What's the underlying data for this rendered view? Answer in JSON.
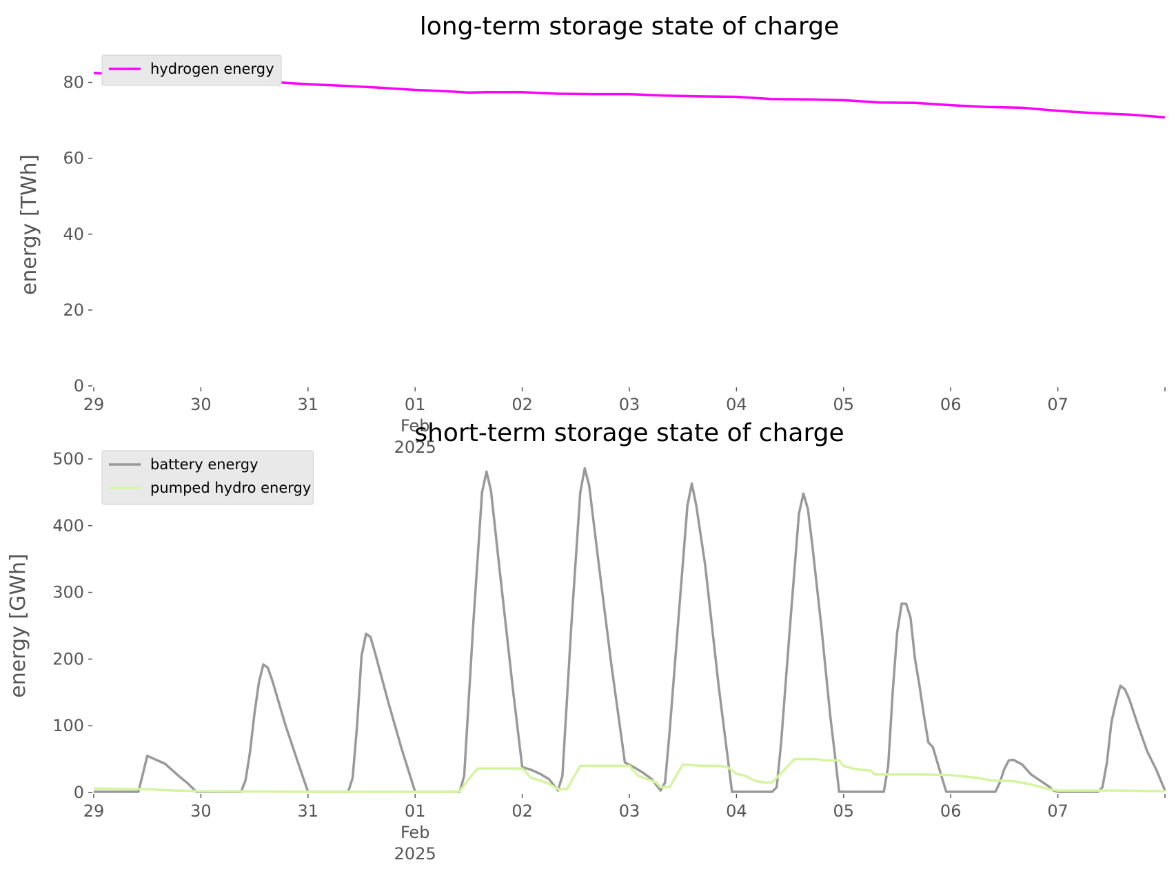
{
  "colors": {
    "hydrogen": "#ff00ff",
    "battery": "#999999",
    "pumped_hydro": "#d4f5a0",
    "axis_text": "#555555",
    "legend_bg": "#e9e9e9"
  },
  "chart_data": [
    {
      "type": "line",
      "title": "long-term storage state of charge",
      "xlabel": "",
      "ylabel": "energy [TWh]",
      "xlim": [
        "2025-01-29 00:00",
        "2025-02-08 00:00"
      ],
      "ylim": [
        0,
        85
      ],
      "yticks": [
        0,
        20,
        40,
        60,
        80
      ],
      "xticks": [
        {
          "label": "29",
          "sub": ""
        },
        {
          "label": "30",
          "sub": ""
        },
        {
          "label": "31",
          "sub": ""
        },
        {
          "label": "01",
          "sub": "Feb",
          "sub2": "2025"
        },
        {
          "label": "02",
          "sub": ""
        },
        {
          "label": "03",
          "sub": ""
        },
        {
          "label": "04",
          "sub": ""
        },
        {
          "label": "05",
          "sub": ""
        },
        {
          "label": "06",
          "sub": ""
        },
        {
          "label": "07",
          "sub": ""
        }
      ],
      "grid": false,
      "legend": "top-left",
      "series": [
        {
          "name": "hydrogen energy",
          "color": "#ff00ff",
          "points": [
            [
              "2025-01-29 00:00",
              82.5
            ],
            [
              "2025-01-29 12:00",
              81.6
            ],
            [
              "2025-01-30 00:00",
              81.0
            ],
            [
              "2025-01-30 12:00",
              80.4
            ],
            [
              "2025-01-31 00:00",
              79.5
            ],
            [
              "2025-01-31 08:00",
              79.1
            ],
            [
              "2025-01-31 16:00",
              78.6
            ],
            [
              "2025-02-01 00:00",
              78.0
            ],
            [
              "2025-02-01 08:00",
              77.6
            ],
            [
              "2025-02-01 12:00",
              77.3
            ],
            [
              "2025-02-01 16:00",
              77.4
            ],
            [
              "2025-02-02 00:00",
              77.4
            ],
            [
              "2025-02-02 08:00",
              77.0
            ],
            [
              "2025-02-02 16:00",
              76.9
            ],
            [
              "2025-02-03 00:00",
              76.9
            ],
            [
              "2025-02-03 08:00",
              76.5
            ],
            [
              "2025-02-03 16:00",
              76.3
            ],
            [
              "2025-02-04 00:00",
              76.2
            ],
            [
              "2025-02-04 08:00",
              75.6
            ],
            [
              "2025-02-04 16:00",
              75.5
            ],
            [
              "2025-02-05 00:00",
              75.3
            ],
            [
              "2025-02-05 08:00",
              74.7
            ],
            [
              "2025-02-05 16:00",
              74.6
            ],
            [
              "2025-02-06 00:00",
              74.0
            ],
            [
              "2025-02-06 08:00",
              73.5
            ],
            [
              "2025-02-06 16:00",
              73.3
            ],
            [
              "2025-02-07 00:00",
              72.5
            ],
            [
              "2025-02-07 08:00",
              71.9
            ],
            [
              "2025-02-07 16:00",
              71.5
            ],
            [
              "2025-02-08 00:00",
              70.8
            ]
          ]
        }
      ]
    },
    {
      "type": "line",
      "title": "short-term storage state of charge",
      "xlabel": "",
      "ylabel": "energy [GWh]",
      "xlim": [
        "2025-01-29 00:00",
        "2025-02-08 00:00"
      ],
      "ylim": [
        0,
        500
      ],
      "yticks": [
        0,
        100,
        200,
        300,
        400,
        500
      ],
      "xticks": [
        {
          "label": "29",
          "sub": ""
        },
        {
          "label": "30",
          "sub": ""
        },
        {
          "label": "31",
          "sub": ""
        },
        {
          "label": "01",
          "sub": "Feb",
          "sub2": "2025"
        },
        {
          "label": "02",
          "sub": ""
        },
        {
          "label": "03",
          "sub": ""
        },
        {
          "label": "04",
          "sub": ""
        },
        {
          "label": "05",
          "sub": ""
        },
        {
          "label": "06",
          "sub": ""
        },
        {
          "label": "07",
          "sub": ""
        }
      ],
      "grid": false,
      "legend": "top-left",
      "series": [
        {
          "name": "battery energy",
          "color": "#999999",
          "points": [
            [
              "2025-01-29 00:00",
              1
            ],
            [
              "2025-01-29 10:00",
              1
            ],
            [
              "2025-01-29 12:00",
              55
            ],
            [
              "2025-01-29 16:00",
              43
            ],
            [
              "2025-01-29 19:00",
              25
            ],
            [
              "2025-01-29 21:00",
              14
            ],
            [
              "2025-01-29 23:00",
              1
            ],
            [
              "2025-01-30 00:00",
              1
            ],
            [
              "2025-01-30 09:00",
              1
            ],
            [
              "2025-01-30 10:00",
              18
            ],
            [
              "2025-01-30 11:00",
              60
            ],
            [
              "2025-01-30 12:00",
              118
            ],
            [
              "2025-01-30 13:00",
              165
            ],
            [
              "2025-01-30 14:00",
              192
            ],
            [
              "2025-01-30 15:00",
              187
            ],
            [
              "2025-01-30 16:00",
              168
            ],
            [
              "2025-01-30 19:00",
              100
            ],
            [
              "2025-01-30 22:00",
              40
            ],
            [
              "2025-01-31 00:00",
              1
            ],
            [
              "2025-01-31 09:00",
              1
            ],
            [
              "2025-01-31 10:00",
              22
            ],
            [
              "2025-01-31 11:00",
              100
            ],
            [
              "2025-01-31 12:00",
              205
            ],
            [
              "2025-01-31 13:00",
              238
            ],
            [
              "2025-01-31 14:00",
              233
            ],
            [
              "2025-01-31 15:00",
              210
            ],
            [
              "2025-01-31 18:00",
              135
            ],
            [
              "2025-01-31 21:00",
              65
            ],
            [
              "2025-02-01 00:00",
              1
            ],
            [
              "2025-02-01 10:00",
              1
            ],
            [
              "2025-02-01 11:00",
              25
            ],
            [
              "2025-02-01 13:00",
              250
            ],
            [
              "2025-02-01 15:00",
              450
            ],
            [
              "2025-02-01 16:00",
              481
            ],
            [
              "2025-02-01 17:00",
              452
            ],
            [
              "2025-02-01 19:00",
              330
            ],
            [
              "2025-02-01 22:00",
              150
            ],
            [
              "2025-02-02 00:00",
              38
            ],
            [
              "2025-02-02 02:00",
              34
            ],
            [
              "2025-02-02 04:00",
              28
            ],
            [
              "2025-02-02 06:00",
              20
            ],
            [
              "2025-02-02 08:00",
              3
            ],
            [
              "2025-02-02 09:00",
              25
            ],
            [
              "2025-02-02 11:00",
              250
            ],
            [
              "2025-02-02 13:00",
              450
            ],
            [
              "2025-02-02 14:00",
              486
            ],
            [
              "2025-02-02 15:00",
              460
            ],
            [
              "2025-02-02 17:00",
              350
            ],
            [
              "2025-02-02 20:00",
              190
            ],
            [
              "2025-02-02 23:00",
              45
            ],
            [
              "2025-02-03 01:00",
              38
            ],
            [
              "2025-02-03 03:00",
              30
            ],
            [
              "2025-02-03 05:00",
              20
            ],
            [
              "2025-02-03 07:00",
              3
            ],
            [
              "2025-02-03 08:00",
              15
            ],
            [
              "2025-02-03 09:00",
              90
            ],
            [
              "2025-02-03 11:00",
              260
            ],
            [
              "2025-02-03 13:00",
              430
            ],
            [
              "2025-02-03 14:00",
              463
            ],
            [
              "2025-02-03 15:00",
              430
            ],
            [
              "2025-02-03 17:00",
              340
            ],
            [
              "2025-02-03 20:00",
              160
            ],
            [
              "2025-02-03 23:00",
              1
            ],
            [
              "2025-02-04 08:00",
              1
            ],
            [
              "2025-02-04 09:00",
              8
            ],
            [
              "2025-02-04 10:00",
              75
            ],
            [
              "2025-02-04 12:00",
              250
            ],
            [
              "2025-02-04 14:00",
              418
            ],
            [
              "2025-02-04 15:00",
              448
            ],
            [
              "2025-02-04 16:00",
              425
            ],
            [
              "2025-02-04 17:00",
              370
            ],
            [
              "2025-02-04 19:00",
              250
            ],
            [
              "2025-02-04 21:00",
              115
            ],
            [
              "2025-02-04 22:00",
              60
            ],
            [
              "2025-02-04 23:00",
              1
            ],
            [
              "2025-02-05 09:00",
              1
            ],
            [
              "2025-02-05 10:00",
              40
            ],
            [
              "2025-02-05 11:00",
              150
            ],
            [
              "2025-02-05 12:00",
              240
            ],
            [
              "2025-02-05 13:00",
              283
            ],
            [
              "2025-02-05 14:00",
              283
            ],
            [
              "2025-02-05 15:00",
              262
            ],
            [
              "2025-02-05 16:00",
              200
            ],
            [
              "2025-02-05 17:00",
              160
            ],
            [
              "2025-02-05 18:00",
              115
            ],
            [
              "2025-02-05 19:00",
              75
            ],
            [
              "2025-02-05 20:00",
              68
            ],
            [
              "2025-02-05 21:00",
              45
            ],
            [
              "2025-02-05 23:00",
              1
            ],
            [
              "2025-02-06 00:00",
              1
            ],
            [
              "2025-02-06 10:00",
              1
            ],
            [
              "2025-02-06 11:00",
              15
            ],
            [
              "2025-02-06 12:00",
              35
            ],
            [
              "2025-02-06 13:00",
              48
            ],
            [
              "2025-02-06 14:00",
              49
            ],
            [
              "2025-02-06 16:00",
              42
            ],
            [
              "2025-02-06 18:00",
              27
            ],
            [
              "2025-02-06 20:00",
              18
            ],
            [
              "2025-02-06 22:00",
              9
            ],
            [
              "2025-02-06 23:00",
              3
            ],
            [
              "2025-02-07 00:00",
              1
            ],
            [
              "2025-02-07 09:00",
              1
            ],
            [
              "2025-02-07 10:00",
              8
            ],
            [
              "2025-02-07 11:00",
              45
            ],
            [
              "2025-02-07 12:00",
              105
            ],
            [
              "2025-02-07 13:00",
              135
            ],
            [
              "2025-02-07 14:00",
              160
            ],
            [
              "2025-02-07 15:00",
              155
            ],
            [
              "2025-02-07 16:00",
              140
            ],
            [
              "2025-02-07 18:00",
              100
            ],
            [
              "2025-02-07 20:00",
              62
            ],
            [
              "2025-02-07 22:00",
              35
            ],
            [
              "2025-02-08 00:00",
              3
            ]
          ]
        },
        {
          "name": "pumped hydro energy",
          "color": "#d4f5a0",
          "points": [
            [
              "2025-01-29 00:00",
              6
            ],
            [
              "2025-01-29 12:00",
              5
            ],
            [
              "2025-01-29 18:00",
              3
            ],
            [
              "2025-01-30 00:00",
              2
            ],
            [
              "2025-01-31 00:00",
              1
            ],
            [
              "2025-02-01 00:00",
              1
            ],
            [
              "2025-02-01 09:00",
              1
            ],
            [
              "2025-02-01 10:00",
              2
            ],
            [
              "2025-02-01 12:00",
              20
            ],
            [
              "2025-02-01 14:00",
              36
            ],
            [
              "2025-02-01 22:00",
              36
            ],
            [
              "2025-02-02 00:00",
              36
            ],
            [
              "2025-02-02 02:00",
              22
            ],
            [
              "2025-02-02 04:00",
              18
            ],
            [
              "2025-02-02 06:00",
              13
            ],
            [
              "2025-02-02 08:00",
              5
            ],
            [
              "2025-02-02 10:00",
              5
            ],
            [
              "2025-02-02 13:00",
              40
            ],
            [
              "2025-02-02 20:00",
              40
            ],
            [
              "2025-02-03 00:00",
              40
            ],
            [
              "2025-02-03 02:00",
              25
            ],
            [
              "2025-02-03 04:00",
              20
            ],
            [
              "2025-02-03 06:00",
              15
            ],
            [
              "2025-02-03 07:00",
              8
            ],
            [
              "2025-02-03 09:00",
              8
            ],
            [
              "2025-02-03 12:00",
              42
            ],
            [
              "2025-02-03 16:00",
              40
            ],
            [
              "2025-02-03 20:00",
              40
            ],
            [
              "2025-02-03 22:00",
              38
            ],
            [
              "2025-02-04 00:00",
              28
            ],
            [
              "2025-02-04 02:00",
              25
            ],
            [
              "2025-02-04 04:00",
              18
            ],
            [
              "2025-02-04 06:00",
              15
            ],
            [
              "2025-02-04 08:00",
              15
            ],
            [
              "2025-02-04 13:00",
              50
            ],
            [
              "2025-02-04 18:00",
              50
            ],
            [
              "2025-02-04 20:00",
              48
            ],
            [
              "2025-02-04 23:00",
              48
            ],
            [
              "2025-02-05 00:00",
              40
            ],
            [
              "2025-02-05 02:00",
              36
            ],
            [
              "2025-02-05 04:00",
              34
            ],
            [
              "2025-02-05 06:00",
              33
            ],
            [
              "2025-02-05 07:00",
              27
            ],
            [
              "2025-02-05 18:00",
              27
            ],
            [
              "2025-02-06 00:00",
              26
            ],
            [
              "2025-02-06 06:00",
              22
            ],
            [
              "2025-02-06 09:00",
              18
            ],
            [
              "2025-02-06 14:00",
              17
            ],
            [
              "2025-02-06 18:00",
              12
            ],
            [
              "2025-02-06 22:00",
              5
            ],
            [
              "2025-02-07 00:00",
              3
            ],
            [
              "2025-02-07 12:00",
              3
            ],
            [
              "2025-02-08 00:00",
              2
            ]
          ]
        }
      ]
    }
  ]
}
